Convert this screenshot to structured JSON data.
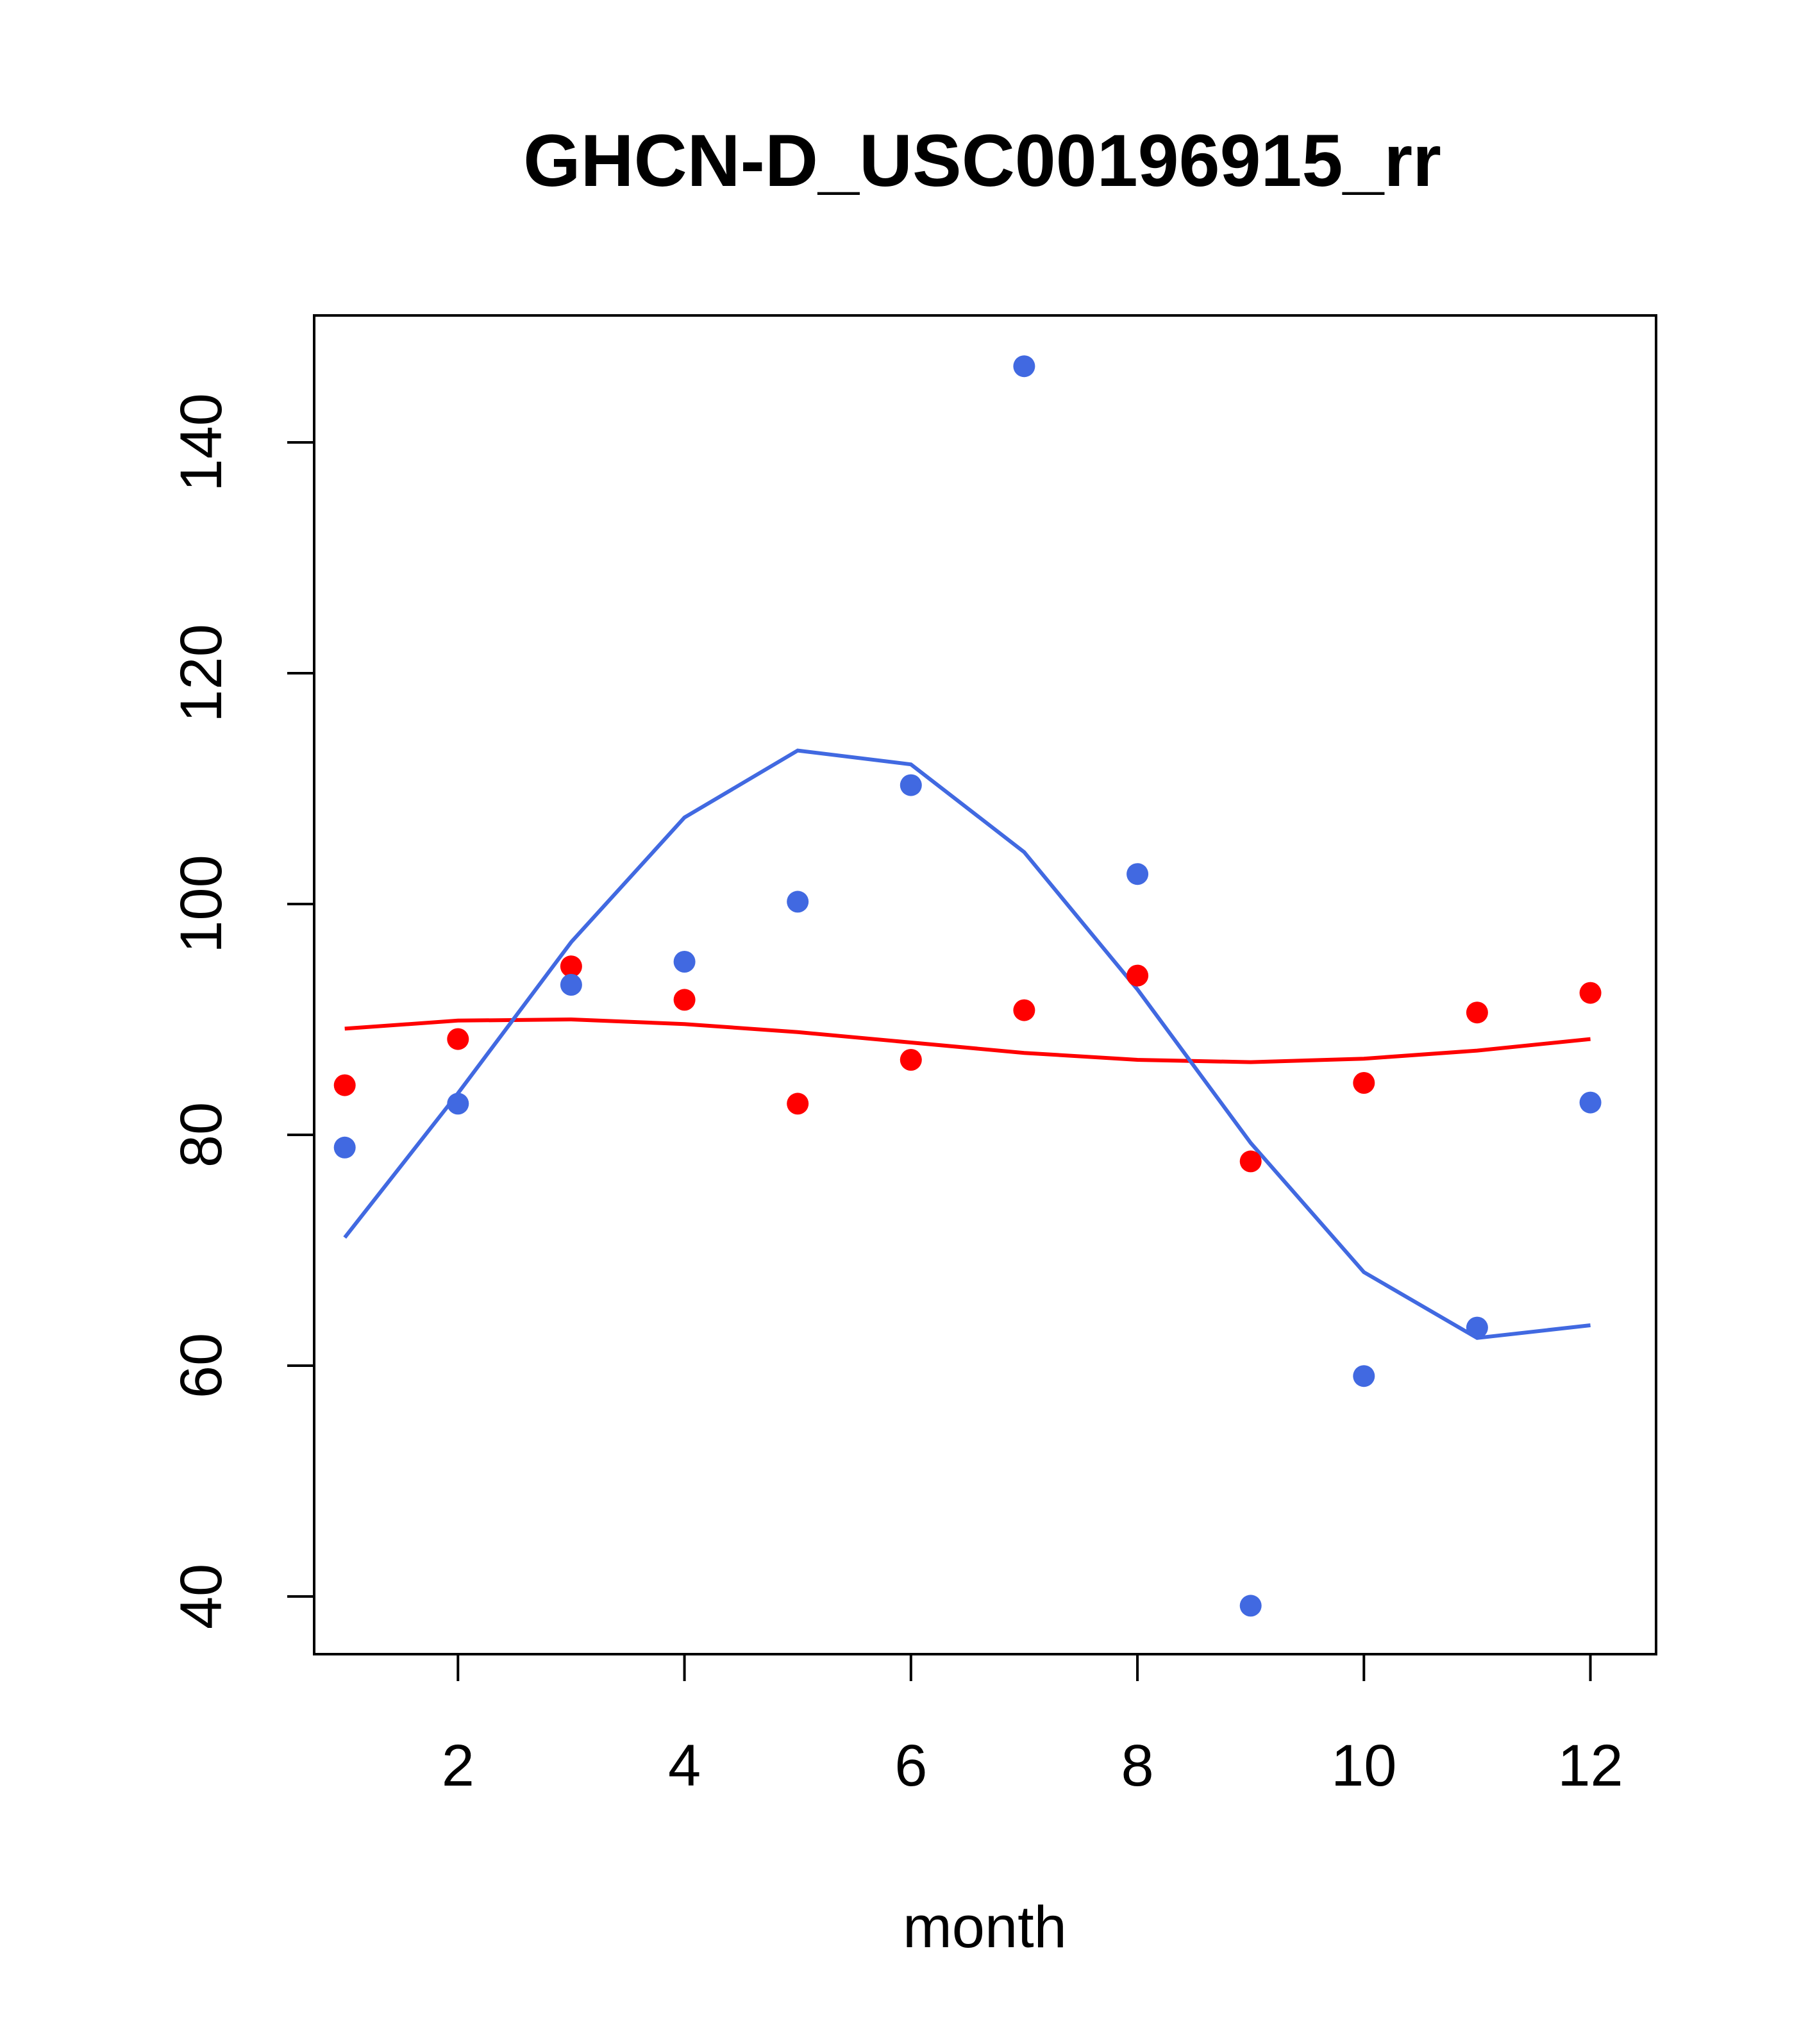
{
  "chart_data": {
    "type": "scatter",
    "title": "GHCN-D_USC00196915_rr",
    "xlabel": "month",
    "ylabel": "",
    "xlim": [
      0.73,
      12.58
    ],
    "ylim": [
      35,
      151
    ],
    "xticks": [
      2,
      4,
      6,
      8,
      10,
      12
    ],
    "yticks": [
      40,
      60,
      80,
      100,
      120,
      140
    ],
    "grid": false,
    "legend": "none",
    "x": [
      1,
      2,
      3,
      4,
      5,
      6,
      7,
      8,
      9,
      10,
      11,
      12
    ],
    "series": [
      {
        "color": "#ff0000",
        "points": [
          84.3,
          88.3,
          94.6,
          91.7,
          82.7,
          86.5,
          90.8,
          93.8,
          77.7,
          84.5,
          90.6,
          92.3
        ],
        "curve": [
          89.2,
          89.9,
          90.0,
          89.6,
          88.9,
          88.0,
          87.1,
          86.5,
          86.3,
          86.6,
          87.3,
          88.3
        ]
      },
      {
        "color": "#4169e1",
        "points": [
          78.9,
          82.7,
          93.0,
          95.0,
          100.2,
          110.3,
          146.6,
          102.6,
          39.2,
          59.1,
          63.3,
          82.8
        ],
        "curve": [
          71.1,
          83.6,
          96.7,
          107.5,
          113.3,
          112.1,
          104.5,
          92.6,
          79.3,
          68.1,
          62.4,
          63.5
        ]
      }
    ]
  }
}
